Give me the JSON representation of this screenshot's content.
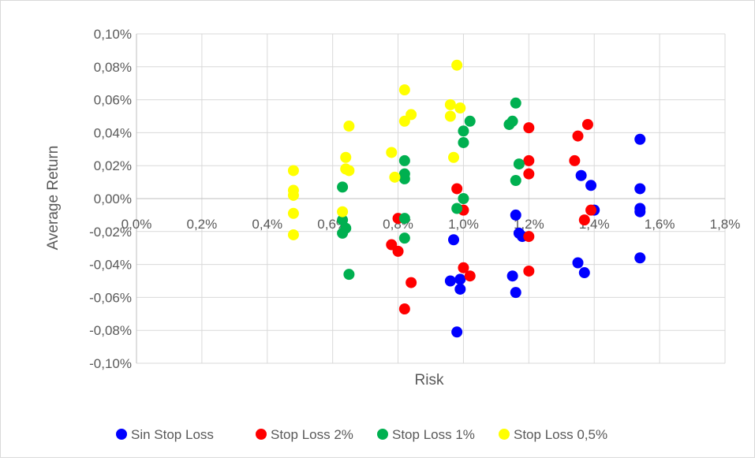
{
  "chart_data": {
    "type": "scatter",
    "xlabel": "Risk",
    "ylabel": "Average Return",
    "xlim": [
      0.0,
      1.8
    ],
    "ylim": [
      -0.1,
      0.1
    ],
    "x_ticks": [
      0.0,
      0.2,
      0.4,
      0.6,
      0.8,
      1.0,
      1.2,
      1.4,
      1.6,
      1.8
    ],
    "x_tick_labels": [
      "0,0%",
      "0,2%",
      "0,4%",
      "0,6%",
      "0,8%",
      "1,0%",
      "1,2%",
      "1,4%",
      "1,6%",
      "1,8%"
    ],
    "y_ticks": [
      0.1,
      0.08,
      0.06,
      0.04,
      0.02,
      0.0,
      -0.02,
      -0.04,
      -0.06,
      -0.08,
      -0.1
    ],
    "y_tick_labels": [
      "0,10%",
      "0,08%",
      "0,06%",
      "0,04%",
      "0,02%",
      "0,00%",
      "-0,02%",
      "-0,04%",
      "-0,06%",
      "-0,08%",
      "-0,10%"
    ],
    "grid": true,
    "legend_position": "bottom",
    "series": [
      {
        "name": "Sin Stop Loss",
        "color": "#0000ff",
        "points": [
          [
            1.54,
            0.036
          ],
          [
            1.54,
            0.006
          ],
          [
            1.54,
            -0.006
          ],
          [
            1.54,
            -0.008
          ],
          [
            1.54,
            -0.036
          ],
          [
            1.36,
            0.014
          ],
          [
            1.39,
            0.008
          ],
          [
            1.4,
            -0.007
          ],
          [
            1.35,
            -0.039
          ],
          [
            1.37,
            -0.045
          ],
          [
            1.16,
            -0.01
          ],
          [
            1.17,
            -0.021
          ],
          [
            1.18,
            -0.023
          ],
          [
            1.15,
            -0.047
          ],
          [
            1.16,
            -0.057
          ],
          [
            0.97,
            -0.025
          ],
          [
            0.96,
            -0.05
          ],
          [
            0.99,
            -0.049
          ],
          [
            0.99,
            -0.055
          ],
          [
            0.98,
            -0.081
          ]
        ]
      },
      {
        "name": "Stop Loss 2%",
        "color": "#ff0000",
        "points": [
          [
            1.38,
            0.045
          ],
          [
            1.35,
            0.038
          ],
          [
            1.34,
            0.023
          ],
          [
            1.39,
            -0.007
          ],
          [
            1.37,
            -0.013
          ],
          [
            1.2,
            0.043
          ],
          [
            1.2,
            0.023
          ],
          [
            1.2,
            0.015
          ],
          [
            1.2,
            -0.023
          ],
          [
            1.2,
            -0.044
          ],
          [
            0.98,
            0.006
          ],
          [
            1.0,
            -0.007
          ],
          [
            1.0,
            -0.042
          ],
          [
            1.02,
            -0.047
          ],
          [
            0.8,
            -0.012
          ],
          [
            0.78,
            -0.028
          ],
          [
            0.8,
            -0.032
          ],
          [
            0.84,
            -0.051
          ],
          [
            0.82,
            -0.067
          ]
        ]
      },
      {
        "name": "Stop Loss 1%",
        "color": "#00b050",
        "points": [
          [
            1.16,
            0.058
          ],
          [
            1.15,
            0.047
          ],
          [
            1.14,
            0.045
          ],
          [
            1.17,
            0.021
          ],
          [
            1.16,
            0.011
          ],
          [
            1.02,
            0.047
          ],
          [
            1.0,
            0.041
          ],
          [
            1.0,
            0.034
          ],
          [
            1.0,
            0.0
          ],
          [
            0.98,
            -0.006
          ],
          [
            0.82,
            0.023
          ],
          [
            0.82,
            0.015
          ],
          [
            0.82,
            0.012
          ],
          [
            0.82,
            -0.012
          ],
          [
            0.82,
            -0.024
          ],
          [
            0.63,
            0.007
          ],
          [
            0.63,
            -0.013
          ],
          [
            0.64,
            -0.018
          ],
          [
            0.63,
            -0.021
          ],
          [
            0.65,
            -0.046
          ]
        ]
      },
      {
        "name": "Stop Loss 0,5%",
        "color": "#ffff00",
        "points": [
          [
            0.98,
            0.081
          ],
          [
            0.96,
            0.057
          ],
          [
            0.99,
            0.055
          ],
          [
            0.96,
            0.05
          ],
          [
            0.97,
            0.025
          ],
          [
            0.82,
            0.066
          ],
          [
            0.84,
            0.051
          ],
          [
            0.82,
            0.047
          ],
          [
            0.78,
            0.028
          ],
          [
            0.79,
            0.013
          ],
          [
            0.65,
            0.044
          ],
          [
            0.64,
            0.025
          ],
          [
            0.64,
            0.018
          ],
          [
            0.65,
            0.017
          ],
          [
            0.63,
            -0.008
          ],
          [
            0.48,
            0.017
          ],
          [
            0.48,
            0.005
          ],
          [
            0.48,
            0.002
          ],
          [
            0.48,
            -0.009
          ],
          [
            0.48,
            -0.022
          ]
        ]
      }
    ]
  }
}
